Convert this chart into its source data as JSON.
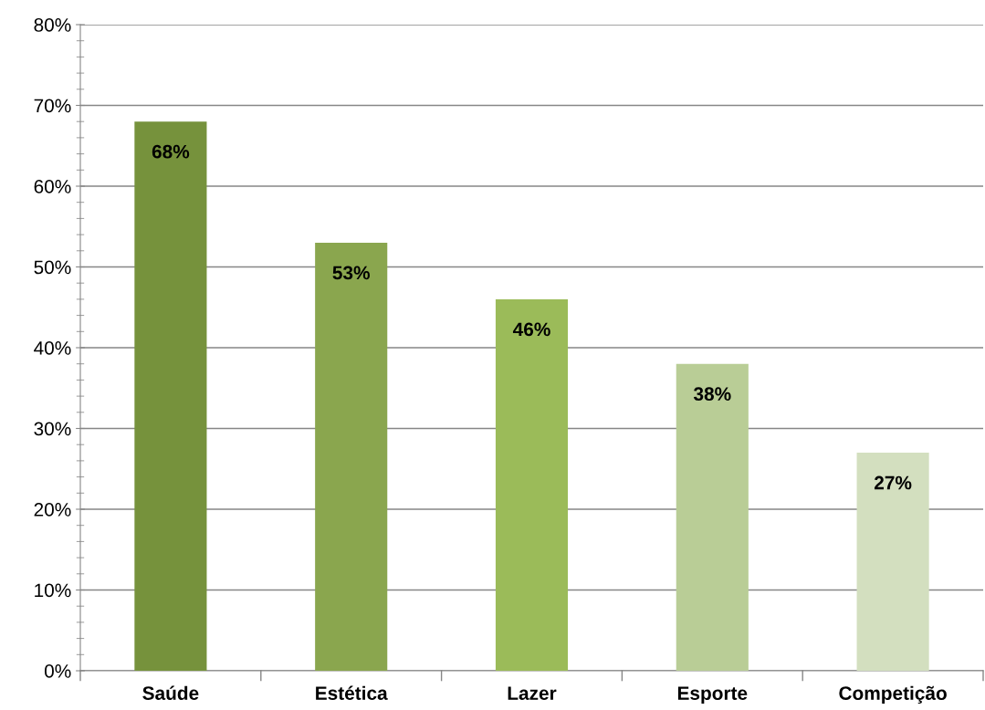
{
  "chart_data": {
    "type": "bar",
    "categories": [
      "Saúde",
      "Estética",
      "Lazer",
      "Esporte",
      "Competição"
    ],
    "values": [
      68,
      53,
      46,
      38,
      27
    ],
    "colors": [
      "#76923c",
      "#8aa64e",
      "#9bbb59",
      "#b9cd96",
      "#d3dfbf"
    ],
    "value_labels": [
      "68%",
      "53%",
      "46%",
      "38%",
      "27%"
    ],
    "ylim": [
      0,
      80
    ],
    "yticks": [
      {
        "value": 0,
        "label": "0%"
      },
      {
        "value": 10,
        "label": "10%"
      },
      {
        "value": 20,
        "label": "20%"
      },
      {
        "value": 30,
        "label": "30%"
      },
      {
        "value": 40,
        "label": "40%"
      },
      {
        "value": 50,
        "label": "50%"
      },
      {
        "value": 60,
        "label": "60%"
      },
      {
        "value": 70,
        "label": "70%"
      },
      {
        "value": 80,
        "label": "80%"
      }
    ],
    "grid": "y"
  }
}
